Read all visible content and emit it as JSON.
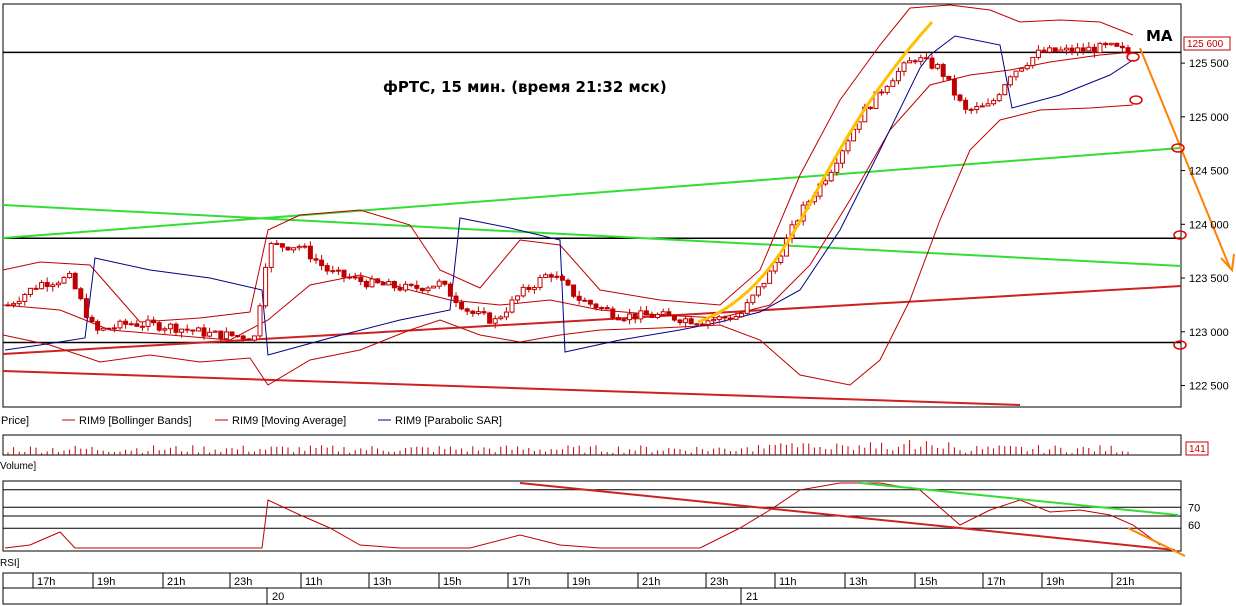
{
  "chart_data": {
    "type": "candlestick",
    "title": "фРТС, 15 мин. (время 21:32 мск)",
    "ma_label": "MA",
    "price_axis": {
      "ylim": [
        122300,
        126050
      ],
      "ticks": [
        "125 500",
        "125 000",
        "124 500",
        "124 000",
        "123 500",
        "123 000",
        "122 500"
      ],
      "tick_values": [
        125500,
        125000,
        124500,
        124000,
        123500,
        123000,
        122500
      ]
    },
    "last_price_label": "125 600",
    "last_price": 125600,
    "volume_badge": "141",
    "rsi_axis": {
      "ticks": [
        "70",
        "60"
      ],
      "tick_values": [
        70,
        60
      ]
    },
    "time_ticks": [
      "17h",
      "19h",
      "21h",
      "23h",
      "11h",
      "13h",
      "15h",
      "17h",
      "19h",
      "21h",
      "23h",
      "11h",
      "13h",
      "15h",
      "17h",
      "19h",
      "21h"
    ],
    "date_labels": [
      "20",
      "21"
    ],
    "legend": [
      {
        "label": "Price]",
        "color": "#000000"
      },
      {
        "label": "RIM9 [Bollinger Bands]",
        "color": "#c00000"
      },
      {
        "label": "RIM9 [Moving Average]",
        "color": "#c00000"
      },
      {
        "label": "RIM9 [Parabolic SAR]",
        "color": "#00008b"
      }
    ],
    "volume_label": "Volume]",
    "rsi_label": "RSI]",
    "horizontal_levels": [
      125600,
      123870,
      122900
    ],
    "colors": {
      "candle_up": "#c00000",
      "candle_down": "#c00000",
      "bollinger": "#c00000",
      "ma": "#c00000",
      "sar": "#00008b",
      "green_trend": "#33dd33",
      "red_trend": "#cc2222",
      "orange": "#ff8000",
      "yellow": "#ffc000"
    }
  }
}
